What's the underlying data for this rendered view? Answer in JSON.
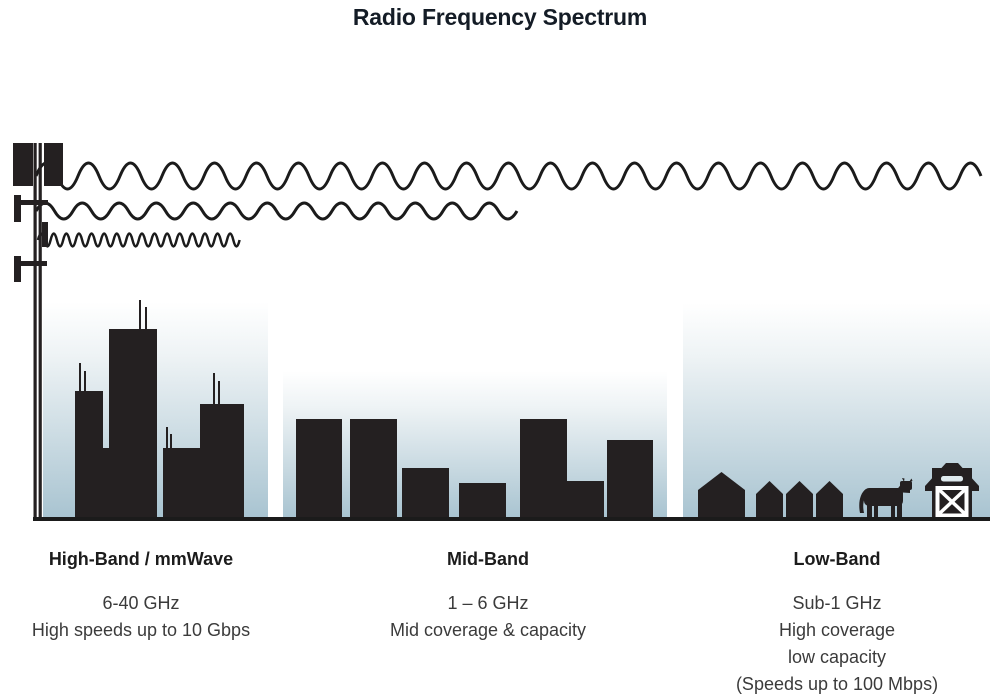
{
  "title": "Radio Frequency Spectrum",
  "colors": {
    "ink": "#242021",
    "sky_top": "#ffffff",
    "sky_bottom": "#a9c4d1",
    "title_text": "#141c26",
    "body_text": "#3b3b3b"
  },
  "bands": [
    {
      "name": "High-Band / mmWave",
      "frequency": "6-40 GHz",
      "lines": [
        "High speeds up to 10 Gbps"
      ],
      "scene": "city skyscrapers with rooftop antennas",
      "wave": {
        "wavelength": "shortest",
        "reach": "shortest"
      }
    },
    {
      "name": "Mid-Band",
      "frequency": "1 – 6 GHz",
      "lines": [
        "Mid coverage & capacity"
      ],
      "scene": "mid-rise town buildings",
      "wave": {
        "wavelength": "medium",
        "reach": "medium"
      }
    },
    {
      "name": "Low-Band",
      "frequency": "Sub-1 GHz",
      "lines": [
        "High coverage",
        "low capacity",
        "(Speeds up to 100 Mbps)"
      ],
      "scene": "rural houses, cow and barn",
      "wave": {
        "wavelength": "longest",
        "reach": "farthest"
      }
    }
  ]
}
